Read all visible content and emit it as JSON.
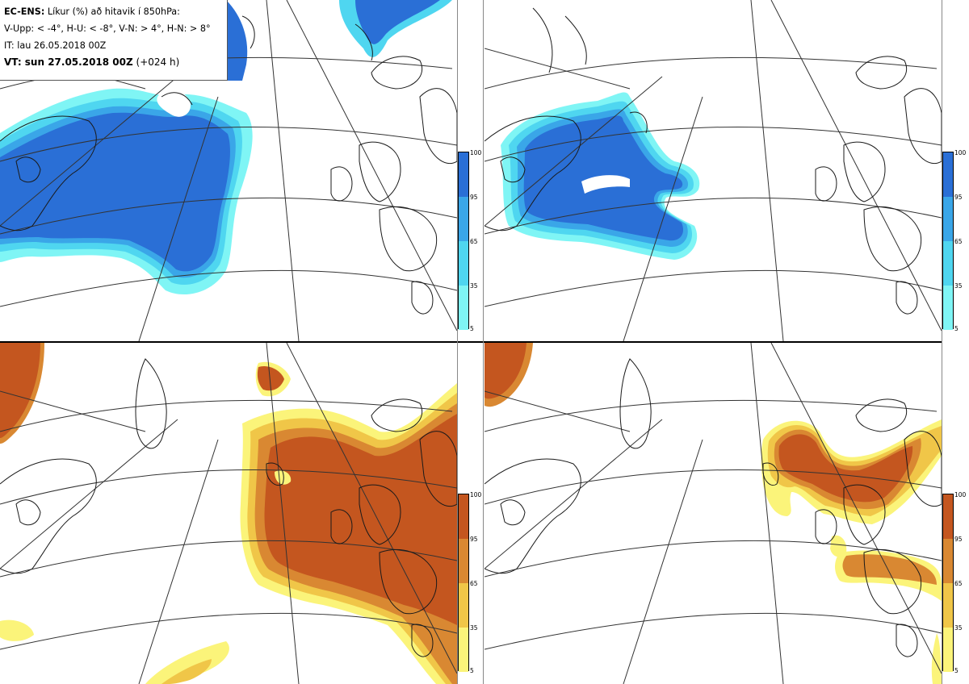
{
  "header": {
    "model": "EC-ENS:",
    "parameter": "Líkur (%) að hitavik í 850hPa:",
    "thresholds": "V-Upp: < -4°, H-U: < -8°, V-N: > 4°, H-N: > 8°",
    "initial_time": "IT: lau 26.05.2018 00Z",
    "valid_time_label": "VT: sun 27.05.2018 00Z",
    "lead": "(+024 h)"
  },
  "colorbar": {
    "ticks": [
      "100",
      "95",
      "65",
      "35",
      "5"
    ]
  },
  "colors": {
    "cold_levels": [
      "#7ff5f5",
      "#4fd6f0",
      "#3aa6e8",
      "#2a6fd6"
    ],
    "warm_levels": [
      "#fbf47a",
      "#f0c648",
      "#d98832",
      "#c4561f"
    ],
    "coast": "#1a1a1a",
    "grid": "#333333"
  },
  "panels": [
    {
      "id": "upper-left",
      "label": "V-Upp",
      "palette": "cold"
    },
    {
      "id": "upper-right",
      "label": "H-U",
      "palette": "cold"
    },
    {
      "id": "lower-left",
      "label": "V-N",
      "palette": "warm"
    },
    {
      "id": "lower-right",
      "label": "H-N",
      "palette": "warm"
    }
  ]
}
